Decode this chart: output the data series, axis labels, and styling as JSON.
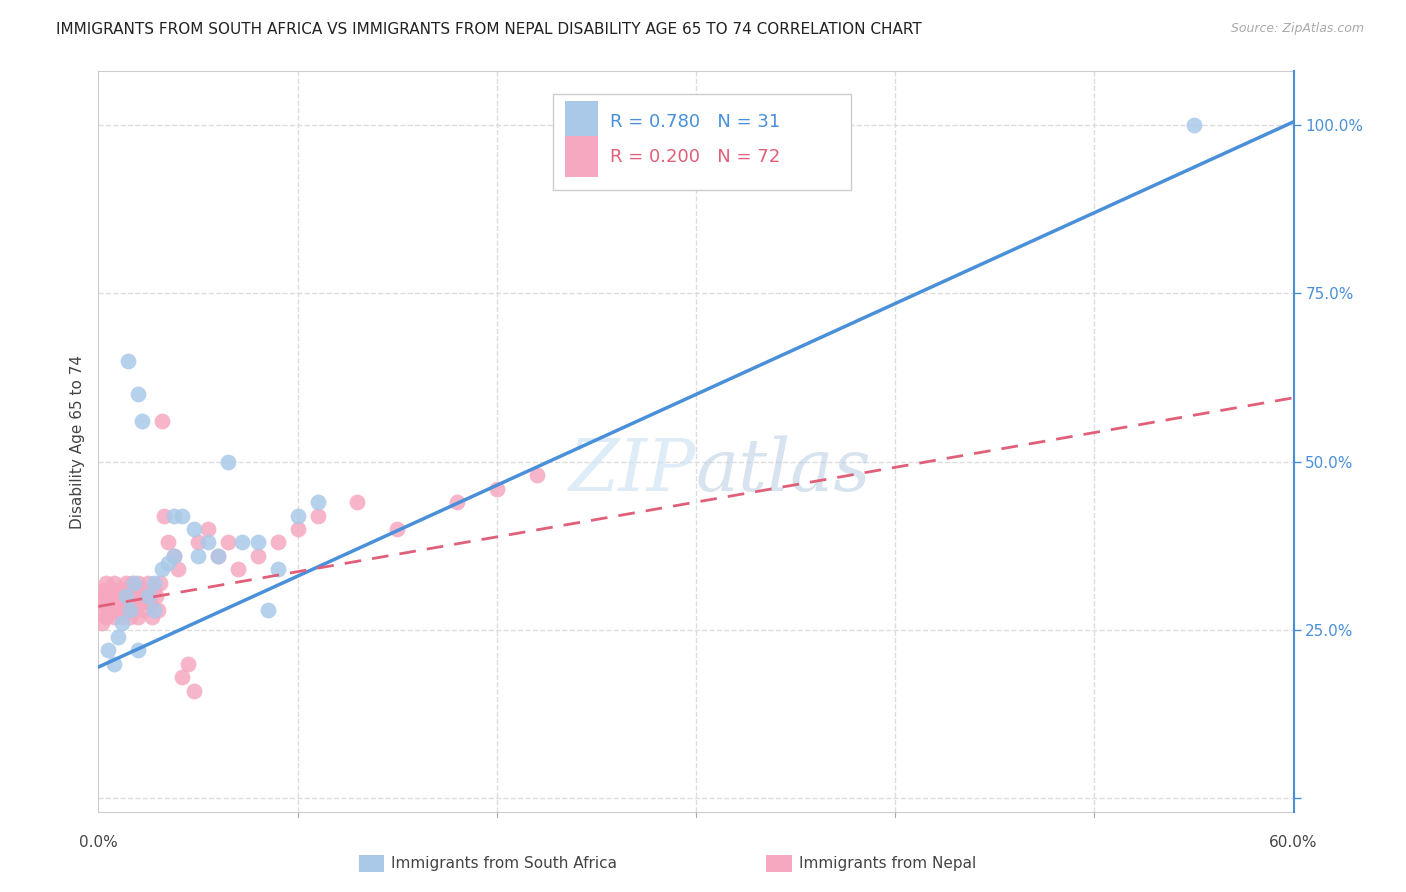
{
  "title": "IMMIGRANTS FROM SOUTH AFRICA VS IMMIGRANTS FROM NEPAL DISABILITY AGE 65 TO 74 CORRELATION CHART",
  "source": "Source: ZipAtlas.com",
  "ylabel": "Disability Age 65 to 74",
  "xlim": [
    0.0,
    0.6
  ],
  "ylim": [
    -0.02,
    1.08
  ],
  "xticks": [
    0.0,
    0.1,
    0.2,
    0.3,
    0.4,
    0.5,
    0.6
  ],
  "xticklabels": [
    "0.0%",
    "",
    "",
    "",
    "",
    "",
    "60.0%"
  ],
  "yticks_right": [
    0.0,
    0.25,
    0.5,
    0.75,
    1.0
  ],
  "yticklabels_right": [
    "",
    "25.0%",
    "50.0%",
    "75.0%",
    "100.0%"
  ],
  "series1_name": "Immigrants from South Africa",
  "series1_color": "#aac9e8",
  "series1_line_color": "#4a90d9",
  "series1_R": 0.78,
  "series1_N": 31,
  "series2_name": "Immigrants from Nepal",
  "series2_color": "#f5a8c0",
  "series2_line_color": "#e0607a",
  "series2_R": 0.2,
  "series2_N": 72,
  "background_color": "#ffffff",
  "grid_color": "#dddddd",
  "title_fontsize": 11,
  "axis_label_fontsize": 11,
  "tick_fontsize": 11,
  "legend_fontsize": 13,
  "watermark_color": "#d0e4f5",
  "scatter1_x": [
    0.005,
    0.008,
    0.01,
    0.012,
    0.014,
    0.016,
    0.018,
    0.02,
    0.022,
    0.025,
    0.028,
    0.032,
    0.038,
    0.042,
    0.048,
    0.055,
    0.06,
    0.065,
    0.072,
    0.08,
    0.09,
    0.1,
    0.11,
    0.02,
    0.028,
    0.038,
    0.015,
    0.035,
    0.05,
    0.085,
    0.55
  ],
  "scatter1_y": [
    0.22,
    0.2,
    0.24,
    0.26,
    0.3,
    0.28,
    0.32,
    0.6,
    0.56,
    0.3,
    0.32,
    0.34,
    0.36,
    0.42,
    0.4,
    0.38,
    0.36,
    0.5,
    0.38,
    0.38,
    0.34,
    0.42,
    0.44,
    0.22,
    0.28,
    0.42,
    0.65,
    0.35,
    0.36,
    0.28,
    1.0
  ],
  "scatter2_x": [
    0.001,
    0.002,
    0.002,
    0.003,
    0.003,
    0.004,
    0.004,
    0.005,
    0.005,
    0.006,
    0.006,
    0.007,
    0.007,
    0.008,
    0.008,
    0.009,
    0.009,
    0.01,
    0.01,
    0.011,
    0.011,
    0.012,
    0.012,
    0.013,
    0.013,
    0.014,
    0.014,
    0.015,
    0.015,
    0.016,
    0.016,
    0.017,
    0.017,
    0.018,
    0.018,
    0.019,
    0.019,
    0.02,
    0.02,
    0.021,
    0.022,
    0.023,
    0.024,
    0.025,
    0.026,
    0.027,
    0.028,
    0.029,
    0.03,
    0.031,
    0.032,
    0.033,
    0.035,
    0.038,
    0.04,
    0.042,
    0.045,
    0.048,
    0.05,
    0.055,
    0.06,
    0.065,
    0.07,
    0.08,
    0.09,
    0.1,
    0.11,
    0.13,
    0.15,
    0.18,
    0.2,
    0.22
  ],
  "scatter2_y": [
    0.28,
    0.3,
    0.26,
    0.29,
    0.31,
    0.27,
    0.32,
    0.28,
    0.3,
    0.29,
    0.31,
    0.28,
    0.3,
    0.27,
    0.32,
    0.29,
    0.31,
    0.28,
    0.3,
    0.29,
    0.31,
    0.28,
    0.27,
    0.31,
    0.29,
    0.3,
    0.32,
    0.28,
    0.29,
    0.31,
    0.27,
    0.3,
    0.32,
    0.28,
    0.31,
    0.29,
    0.3,
    0.27,
    0.32,
    0.29,
    0.31,
    0.28,
    0.3,
    0.32,
    0.29,
    0.27,
    0.31,
    0.3,
    0.28,
    0.32,
    0.56,
    0.42,
    0.38,
    0.36,
    0.34,
    0.18,
    0.2,
    0.16,
    0.38,
    0.4,
    0.36,
    0.38,
    0.34,
    0.36,
    0.38,
    0.4,
    0.42,
    0.44,
    0.4,
    0.44,
    0.46,
    0.48
  ],
  "line1_x0": 0.0,
  "line1_y0": 0.195,
  "line1_x1": 0.6,
  "line1_y1": 1.005,
  "line2_x0": 0.0,
  "line2_y0": 0.285,
  "line2_x1": 0.6,
  "line2_y1": 0.595
}
